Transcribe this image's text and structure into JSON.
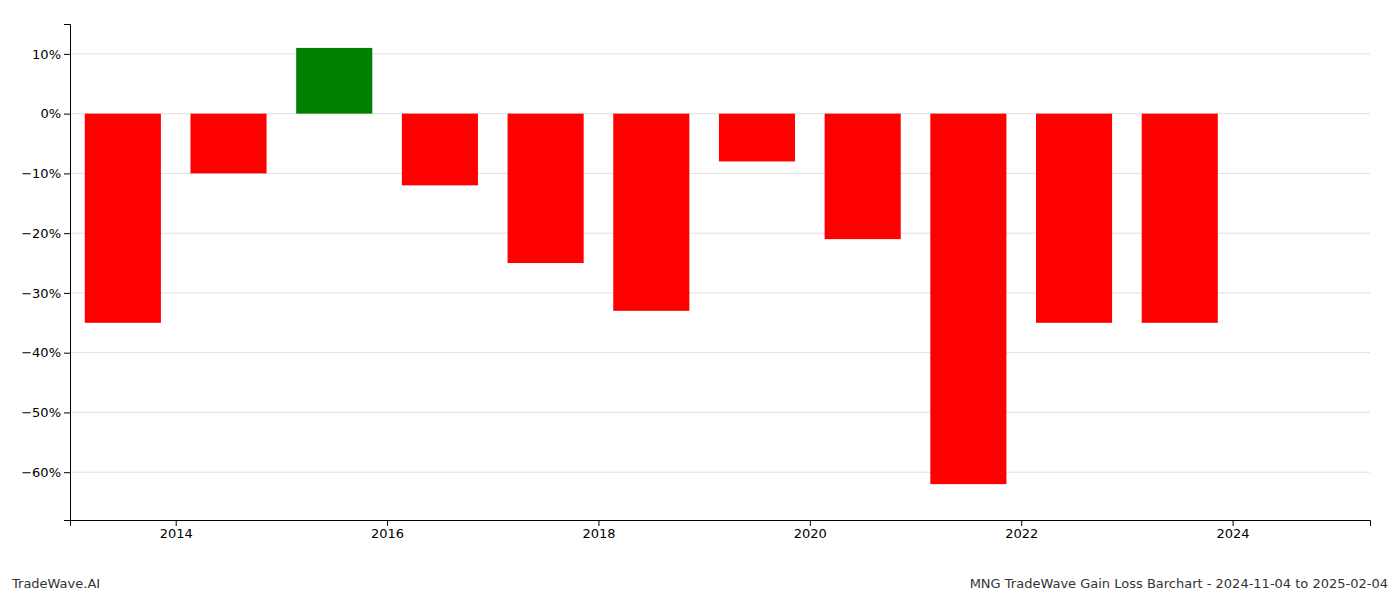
{
  "chart_data": {
    "type": "bar",
    "title": "MNG TradeWave Gain Loss Barchart - 2024-11-04 to 2025-02-04",
    "annotations": [
      {
        "text": "TradeWave.AI"
      }
    ],
    "x": [
      2013.5,
      2014.5,
      2015.5,
      2016.5,
      2017.5,
      2018.5,
      2019.5,
      2020.5,
      2021.5,
      2022.5,
      2023.5
    ],
    "values": [
      -35.0,
      -10.0,
      11.0,
      -12.0,
      -25.0,
      -33.0,
      -8.0,
      -21.0,
      -62.0,
      -35.0,
      -35.0
    ],
    "colors": [
      "#ff0000",
      "#ff0000",
      "#008000",
      "#ff0000",
      "#ff0000",
      "#ff0000",
      "#ff0000",
      "#ff0000",
      "#ff0000",
      "#ff0000",
      "#ff0000"
    ],
    "xlim": [
      2013.0,
      2025.3
    ],
    "xticks": [
      2014,
      2016,
      2018,
      2020,
      2022,
      2024
    ],
    "ylim": [
      -68,
      15
    ],
    "yticks": [
      {
        "value": 10,
        "label": "10%"
      },
      {
        "value": 0,
        "label": "0%"
      },
      {
        "value": -10,
        "label": "−10%"
      },
      {
        "value": -20,
        "label": "−20%"
      },
      {
        "value": -30,
        "label": "−30%"
      },
      {
        "value": -40,
        "label": "−40%"
      },
      {
        "value": -50,
        "label": "−50%"
      },
      {
        "value": -60,
        "label": "−60%"
      }
    ],
    "grid": true
  }
}
